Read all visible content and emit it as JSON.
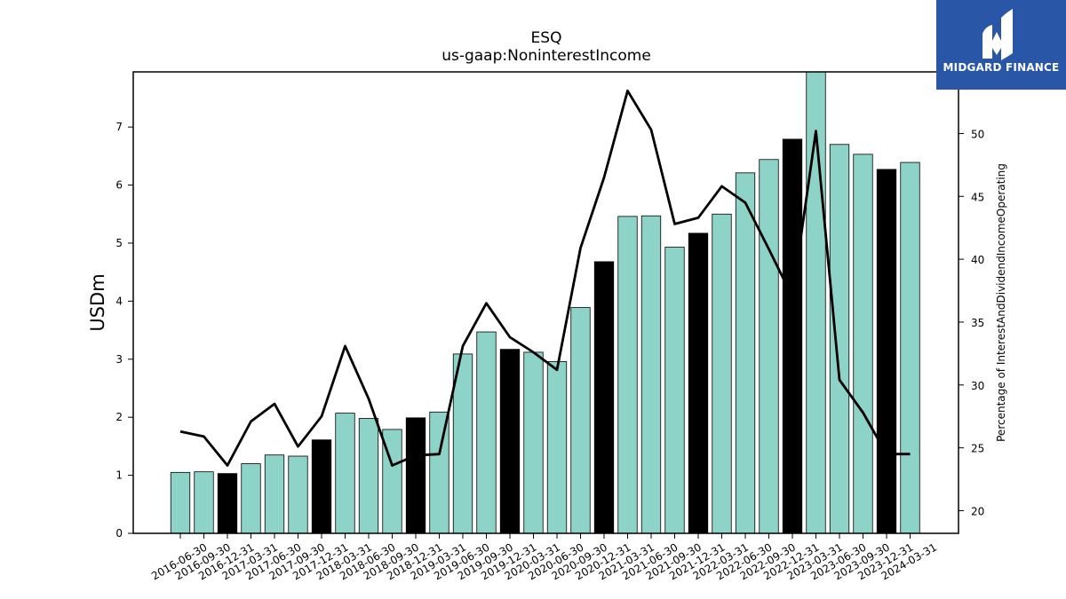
{
  "logo": {
    "name": "MIDGARD FINANCE",
    "icon": "midgard-logo-icon",
    "background": "#2a56a8"
  },
  "chart_data": {
    "type": "bar",
    "title": "ESQ",
    "subtitle": "us-gaap:NoninterestIncome",
    "ylabel": "USDm",
    "ylabel_right": "Percentage of InterestAndDividendIncomeOperating",
    "ylim": [
      0,
      7.95
    ],
    "ylim_right": [
      18.2,
      54.9
    ],
    "yticks": [
      0,
      1,
      2,
      3,
      4,
      5,
      6,
      7
    ],
    "yticks_right": [
      20,
      25,
      30,
      35,
      40,
      45,
      50
    ],
    "grid": false,
    "colors": {
      "bar": "#8dd3c7",
      "bar_highlight": "#000000",
      "line": "#000000"
    },
    "categories": [
      "2016-06-30",
      "2016-09-30",
      "2016-12-31",
      "2017-03-31",
      "2017-06-30",
      "2017-09-30",
      "2017-12-31",
      "2018-03-31",
      "2018-06-30",
      "2018-09-30",
      "2018-12-31",
      "2019-03-31",
      "2019-06-30",
      "2019-09-30",
      "2019-12-31",
      "2020-03-31",
      "2020-06-30",
      "2020-09-30",
      "2020-12-31",
      "2021-03-31",
      "2021-06-30",
      "2021-09-30",
      "2021-12-31",
      "2022-03-31",
      "2022-06-30",
      "2022-09-30",
      "2022-12-31",
      "2023-03-31",
      "2023-06-30",
      "2023-09-30",
      "2023-12-31",
      "2024-03-31"
    ],
    "series": [
      {
        "kind": "bar",
        "axis": "left",
        "values": [
          1.05,
          1.06,
          1.03,
          1.2,
          1.35,
          1.33,
          1.61,
          2.07,
          1.98,
          1.79,
          1.99,
          2.09,
          3.09,
          3.47,
          3.17,
          3.12,
          2.96,
          3.89,
          4.68,
          5.46,
          5.47,
          4.93,
          5.17,
          5.5,
          6.21,
          6.44,
          6.79,
          7.95,
          6.7,
          6.53,
          6.27,
          6.39
        ],
        "highlight": [
          false,
          false,
          true,
          false,
          false,
          false,
          true,
          false,
          false,
          false,
          true,
          false,
          false,
          false,
          true,
          false,
          false,
          false,
          true,
          false,
          false,
          false,
          true,
          false,
          false,
          false,
          true,
          false,
          false,
          false,
          true,
          false
        ]
      },
      {
        "kind": "line",
        "axis": "right",
        "values": [
          26.3,
          25.9,
          23.6,
          27.1,
          28.5,
          25.1,
          27.5,
          33.1,
          28.9,
          23.6,
          24.4,
          24.5,
          33.1,
          36.5,
          33.8,
          32.6,
          31.2,
          40.9,
          46.5,
          53.4,
          50.3,
          42.8,
          43.3,
          45.8,
          44.5,
          40.8,
          37.0,
          50.2,
          30.4,
          27.8,
          24.5,
          24.5
        ]
      }
    ]
  }
}
